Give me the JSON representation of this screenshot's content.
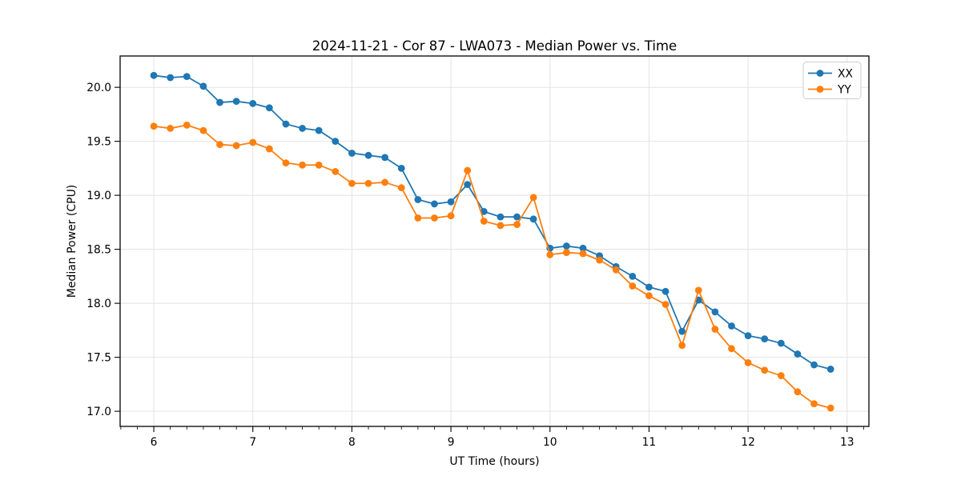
{
  "figure": {
    "title": "2024-11-21 - Cor 87 - LWA073 - Median Power vs. Time"
  },
  "chart_data": {
    "type": "line",
    "title": "2024-11-21 - Cor 87 - LWA073 - Median Power vs. Time",
    "xlabel": "UT Time (hours)",
    "ylabel": "Median Power (CPU)",
    "xlim": [
      5.66,
      13.22
    ],
    "ylim": [
      16.86,
      20.29
    ],
    "xticks": [
      6,
      7,
      8,
      9,
      10,
      11,
      12,
      13
    ],
    "xtick_labels": [
      "6",
      "7",
      "8",
      "9",
      "10",
      "11",
      "12",
      "13"
    ],
    "yticks": [
      17.0,
      17.5,
      18.0,
      18.5,
      19.0,
      19.5,
      20.0
    ],
    "ytick_labels": [
      "17.0",
      "17.5",
      "18.0",
      "18.5",
      "19.0",
      "19.5",
      "20.0"
    ],
    "x_minor_step": 0.16667,
    "grid": true,
    "grid_color": "#e0e0e0",
    "legend_position": "upper right",
    "x": [
      6.0,
      6.1667,
      6.3333,
      6.5,
      6.6667,
      6.8333,
      7.0,
      7.1667,
      7.3333,
      7.5,
      7.6667,
      7.8333,
      8.0,
      8.1667,
      8.3333,
      8.5,
      8.6667,
      8.8333,
      9.0,
      9.1667,
      9.3333,
      9.5,
      9.6667,
      9.8333,
      10.0,
      10.1667,
      10.3333,
      10.5,
      10.6667,
      10.8333,
      11.0,
      11.1667,
      11.3333,
      11.5,
      11.6667,
      11.8333,
      12.0,
      12.1667,
      12.3333,
      12.5,
      12.6667,
      12.8333
    ],
    "series": [
      {
        "name": "XX",
        "color": "#1f77b4",
        "values": [
          20.11,
          20.09,
          20.1,
          20.01,
          19.86,
          19.87,
          19.85,
          19.81,
          19.66,
          19.62,
          19.6,
          19.5,
          19.39,
          19.37,
          19.35,
          19.25,
          18.96,
          18.92,
          18.94,
          19.1,
          18.85,
          18.8,
          18.8,
          18.78,
          18.51,
          18.53,
          18.51,
          18.44,
          18.34,
          18.25,
          18.15,
          18.11,
          17.74,
          18.03,
          17.92,
          17.79,
          17.7,
          17.67,
          17.63,
          17.53,
          17.43,
          17.39
        ]
      },
      {
        "name": "YY",
        "color": "#ff7f0e",
        "values": [
          19.64,
          19.62,
          19.65,
          19.6,
          19.47,
          19.46,
          19.49,
          19.43,
          19.3,
          19.28,
          19.28,
          19.22,
          19.11,
          19.11,
          19.12,
          19.07,
          18.79,
          18.79,
          18.81,
          19.23,
          18.76,
          18.72,
          18.73,
          18.98,
          18.45,
          18.47,
          18.46,
          18.4,
          18.31,
          18.16,
          18.07,
          17.99,
          17.61,
          18.12,
          17.76,
          17.58,
          17.45,
          17.38,
          17.33,
          17.18,
          17.07,
          17.03
        ]
      }
    ]
  }
}
